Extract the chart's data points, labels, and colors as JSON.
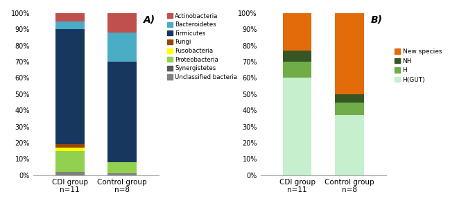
{
  "chartA": {
    "categories": [
      "CDI group\nn=11",
      "Control group\nn=8"
    ],
    "series": [
      {
        "label": "Unclassified bacteria",
        "color": "#808080",
        "values": [
          2,
          1
        ]
      },
      {
        "label": "Synergistetes",
        "color": "#595959",
        "values": [
          0,
          0
        ]
      },
      {
        "label": "Proteobacteria",
        "color": "#92d050",
        "values": [
          13,
          7
        ]
      },
      {
        "label": "Fusobacteria",
        "color": "#ffff00",
        "values": [
          2,
          0
        ]
      },
      {
        "label": "Fungi",
        "color": "#974706",
        "values": [
          2,
          0
        ]
      },
      {
        "label": "Firmicutes",
        "color": "#17375e",
        "values": [
          71,
          62
        ]
      },
      {
        "label": "Bacteroidetes",
        "color": "#4bacc6",
        "values": [
          5,
          18
        ]
      },
      {
        "label": "Actinobacteria",
        "color": "#c0504d",
        "values": [
          5,
          12
        ]
      }
    ],
    "panel_label": "A)",
    "ylim": [
      0,
      100
    ],
    "yticks": [
      0,
      10,
      20,
      30,
      40,
      50,
      60,
      70,
      80,
      90,
      100
    ],
    "yticklabels": [
      "0%",
      "10%",
      "20%",
      "30%",
      "40%",
      "50%",
      "60%",
      "70%",
      "80%",
      "90%",
      "100%"
    ]
  },
  "chartB": {
    "categories": [
      "CDI group\nn=11",
      "Control group\nn=8"
    ],
    "series": [
      {
        "label": "H(GUT)",
        "color": "#c6efce",
        "values": [
          60,
          37
        ]
      },
      {
        "label": "H",
        "color": "#70ad47",
        "values": [
          10,
          8
        ]
      },
      {
        "label": "NH",
        "color": "#375623",
        "values": [
          7,
          5
        ]
      },
      {
        "label": "New species",
        "color": "#e26b0a",
        "values": [
          23,
          50
        ]
      }
    ],
    "panel_label": "B)",
    "ylim": [
      0,
      100
    ],
    "yticks": [
      0,
      10,
      20,
      30,
      40,
      50,
      60,
      70,
      80,
      90,
      100
    ],
    "yticklabels": [
      "0%",
      "10%",
      "20%",
      "30%",
      "40%",
      "50%",
      "60%",
      "70%",
      "80%",
      "90%",
      "100%"
    ]
  },
  "bar_width": 0.55,
  "background_color": "#ffffff"
}
